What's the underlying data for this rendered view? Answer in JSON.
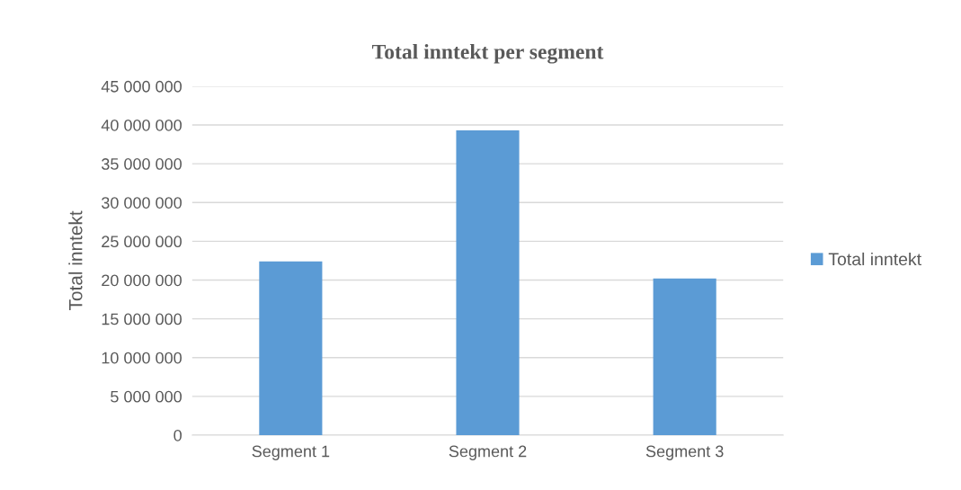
{
  "chart_data": {
    "type": "bar",
    "title": "Total inntekt per segment",
    "ylabel": "Total inntekt",
    "categories": [
      "Segment 1",
      "Segment 2",
      "Segment 3"
    ],
    "series": [
      {
        "name": "Total inntekt",
        "color": "#5b9bd5",
        "values": [
          22400000,
          39300000,
          20200000
        ]
      }
    ],
    "ylim": [
      0,
      45000000
    ],
    "yticks": [
      {
        "value": 0,
        "label": "0"
      },
      {
        "value": 5000000,
        "label": "5 000 000"
      },
      {
        "value": 10000000,
        "label": "10 000 000"
      },
      {
        "value": 15000000,
        "label": "15 000 000"
      },
      {
        "value": 20000000,
        "label": "20 000 000"
      },
      {
        "value": 25000000,
        "label": "25 000 000"
      },
      {
        "value": 30000000,
        "label": "30 000 000"
      },
      {
        "value": 35000000,
        "label": "35 000 000"
      },
      {
        "value": 40000000,
        "label": "40 000 000"
      },
      {
        "value": 45000000,
        "label": "45 000 000"
      }
    ],
    "grid": "y",
    "legend": "right"
  }
}
